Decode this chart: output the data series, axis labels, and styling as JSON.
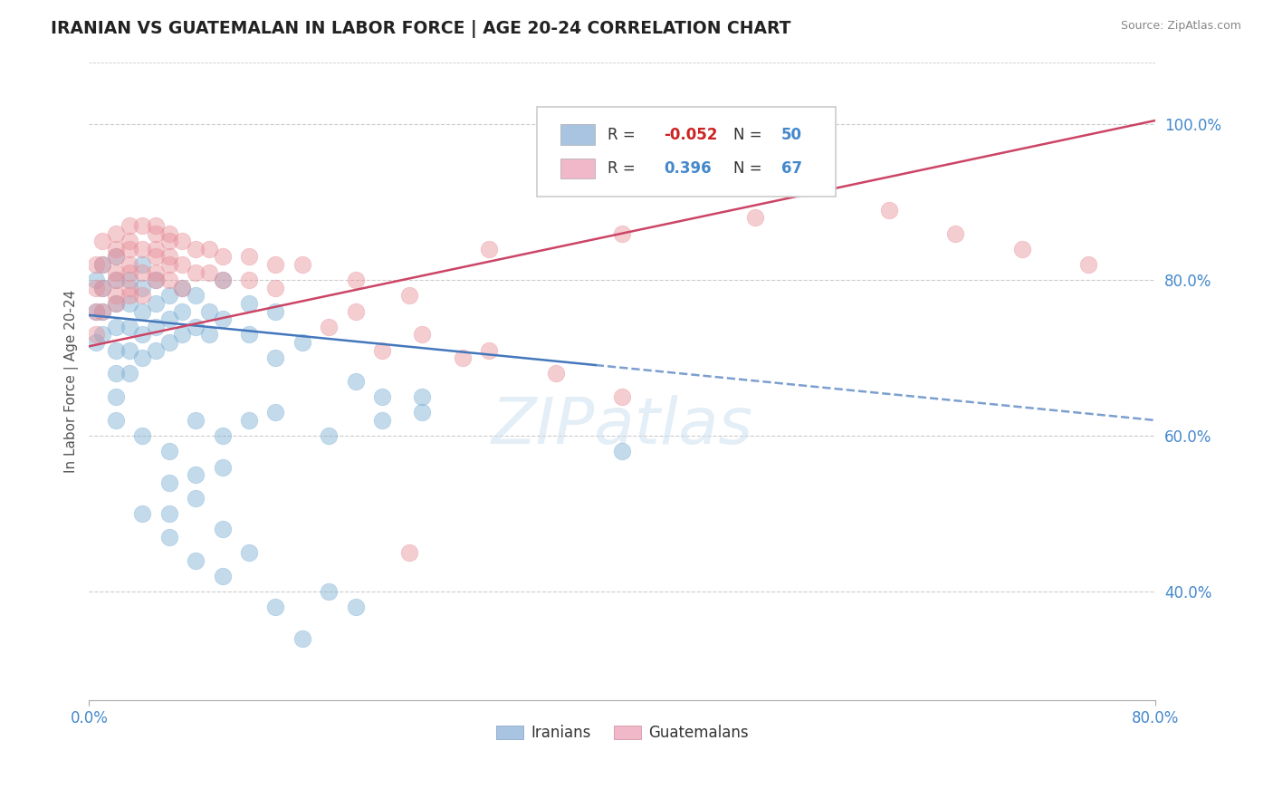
{
  "title": "IRANIAN VS GUATEMALAN IN LABOR FORCE | AGE 20-24 CORRELATION CHART",
  "source": "Source: ZipAtlas.com",
  "ylabel": "In Labor Force | Age 20-24",
  "ytick_labels": [
    "40.0%",
    "60.0%",
    "80.0%",
    "100.0%"
  ],
  "ytick_values": [
    0.4,
    0.6,
    0.8,
    1.0
  ],
  "xlim": [
    0.0,
    0.8
  ],
  "ylim": [
    0.26,
    1.08
  ],
  "legend_labels": [
    "Iranians",
    "Guatemalans"
  ],
  "legend_marker_colors": [
    "#a8c4e0",
    "#f0b8c8"
  ],
  "iranian_color": "#7bafd4",
  "guatemalan_color": "#e8909a",
  "trend_iranian_color": "#4477bb",
  "trend_guatemalan_color": "#cc4466",
  "watermark": "ZIPatlas",
  "trend_ir_x0": 0.0,
  "trend_ir_y0": 0.755,
  "trend_ir_x1": 0.8,
  "trend_ir_y1": 0.62,
  "trend_gt_x0": 0.0,
  "trend_gt_y0": 0.715,
  "trend_gt_x1": 0.8,
  "trend_gt_y1": 1.005,
  "iranians": [
    [
      0.005,
      0.8
    ],
    [
      0.005,
      0.76
    ],
    [
      0.005,
      0.72
    ],
    [
      0.01,
      0.82
    ],
    [
      0.01,
      0.79
    ],
    [
      0.01,
      0.76
    ],
    [
      0.01,
      0.73
    ],
    [
      0.02,
      0.83
    ],
    [
      0.02,
      0.8
    ],
    [
      0.02,
      0.77
    ],
    [
      0.02,
      0.74
    ],
    [
      0.02,
      0.71
    ],
    [
      0.02,
      0.68
    ],
    [
      0.02,
      0.65
    ],
    [
      0.02,
      0.62
    ],
    [
      0.03,
      0.8
    ],
    [
      0.03,
      0.77
    ],
    [
      0.03,
      0.74
    ],
    [
      0.03,
      0.71
    ],
    [
      0.03,
      0.68
    ],
    [
      0.04,
      0.82
    ],
    [
      0.04,
      0.79
    ],
    [
      0.04,
      0.76
    ],
    [
      0.04,
      0.73
    ],
    [
      0.04,
      0.7
    ],
    [
      0.05,
      0.8
    ],
    [
      0.05,
      0.77
    ],
    [
      0.05,
      0.74
    ],
    [
      0.05,
      0.71
    ],
    [
      0.06,
      0.78
    ],
    [
      0.06,
      0.75
    ],
    [
      0.06,
      0.72
    ],
    [
      0.07,
      0.79
    ],
    [
      0.07,
      0.76
    ],
    [
      0.07,
      0.73
    ],
    [
      0.08,
      0.78
    ],
    [
      0.08,
      0.74
    ],
    [
      0.09,
      0.76
    ],
    [
      0.09,
      0.73
    ],
    [
      0.1,
      0.8
    ],
    [
      0.1,
      0.75
    ],
    [
      0.12,
      0.77
    ],
    [
      0.12,
      0.73
    ],
    [
      0.14,
      0.76
    ],
    [
      0.14,
      0.7
    ],
    [
      0.16,
      0.72
    ],
    [
      0.2,
      0.67
    ],
    [
      0.25,
      0.65
    ],
    [
      0.4,
      0.58
    ],
    [
      0.14,
      0.63
    ],
    [
      0.18,
      0.6
    ],
    [
      0.22,
      0.62
    ],
    [
      0.22,
      0.65
    ],
    [
      0.25,
      0.63
    ],
    [
      0.08,
      0.62
    ],
    [
      0.1,
      0.6
    ],
    [
      0.12,
      0.62
    ],
    [
      0.04,
      0.6
    ],
    [
      0.06,
      0.58
    ],
    [
      0.08,
      0.55
    ],
    [
      0.1,
      0.56
    ],
    [
      0.06,
      0.54
    ],
    [
      0.04,
      0.5
    ],
    [
      0.06,
      0.47
    ],
    [
      0.08,
      0.44
    ],
    [
      0.1,
      0.42
    ],
    [
      0.14,
      0.38
    ],
    [
      0.16,
      0.34
    ],
    [
      0.18,
      0.4
    ],
    [
      0.2,
      0.38
    ],
    [
      0.08,
      0.52
    ],
    [
      0.06,
      0.5
    ],
    [
      0.1,
      0.48
    ],
    [
      0.12,
      0.45
    ]
  ],
  "guatemalans": [
    [
      0.005,
      0.82
    ],
    [
      0.005,
      0.79
    ],
    [
      0.005,
      0.76
    ],
    [
      0.005,
      0.73
    ],
    [
      0.01,
      0.85
    ],
    [
      0.01,
      0.82
    ],
    [
      0.01,
      0.79
    ],
    [
      0.01,
      0.76
    ],
    [
      0.02,
      0.86
    ],
    [
      0.02,
      0.83
    ],
    [
      0.02,
      0.8
    ],
    [
      0.02,
      0.77
    ],
    [
      0.02,
      0.84
    ],
    [
      0.02,
      0.81
    ],
    [
      0.02,
      0.78
    ],
    [
      0.03,
      0.87
    ],
    [
      0.03,
      0.84
    ],
    [
      0.03,
      0.81
    ],
    [
      0.03,
      0.78
    ],
    [
      0.03,
      0.85
    ],
    [
      0.03,
      0.82
    ],
    [
      0.03,
      0.79
    ],
    [
      0.04,
      0.87
    ],
    [
      0.04,
      0.84
    ],
    [
      0.04,
      0.81
    ],
    [
      0.04,
      0.78
    ],
    [
      0.05,
      0.87
    ],
    [
      0.05,
      0.84
    ],
    [
      0.05,
      0.81
    ],
    [
      0.05,
      0.86
    ],
    [
      0.05,
      0.83
    ],
    [
      0.05,
      0.8
    ],
    [
      0.06,
      0.86
    ],
    [
      0.06,
      0.83
    ],
    [
      0.06,
      0.8
    ],
    [
      0.06,
      0.85
    ],
    [
      0.06,
      0.82
    ],
    [
      0.07,
      0.85
    ],
    [
      0.07,
      0.82
    ],
    [
      0.07,
      0.79
    ],
    [
      0.08,
      0.84
    ],
    [
      0.08,
      0.81
    ],
    [
      0.09,
      0.84
    ],
    [
      0.09,
      0.81
    ],
    [
      0.1,
      0.83
    ],
    [
      0.1,
      0.8
    ],
    [
      0.12,
      0.83
    ],
    [
      0.12,
      0.8
    ],
    [
      0.14,
      0.82
    ],
    [
      0.14,
      0.79
    ],
    [
      0.16,
      0.82
    ],
    [
      0.2,
      0.8
    ],
    [
      0.3,
      0.84
    ],
    [
      0.4,
      0.86
    ],
    [
      0.5,
      0.88
    ],
    [
      0.6,
      0.89
    ],
    [
      0.65,
      0.86
    ],
    [
      0.7,
      0.84
    ],
    [
      0.75,
      0.82
    ],
    [
      0.18,
      0.74
    ],
    [
      0.22,
      0.71
    ],
    [
      0.25,
      0.73
    ],
    [
      0.28,
      0.7
    ],
    [
      0.3,
      0.71
    ],
    [
      0.35,
      0.68
    ],
    [
      0.4,
      0.65
    ],
    [
      0.2,
      0.76
    ],
    [
      0.24,
      0.78
    ],
    [
      0.24,
      0.45
    ]
  ]
}
